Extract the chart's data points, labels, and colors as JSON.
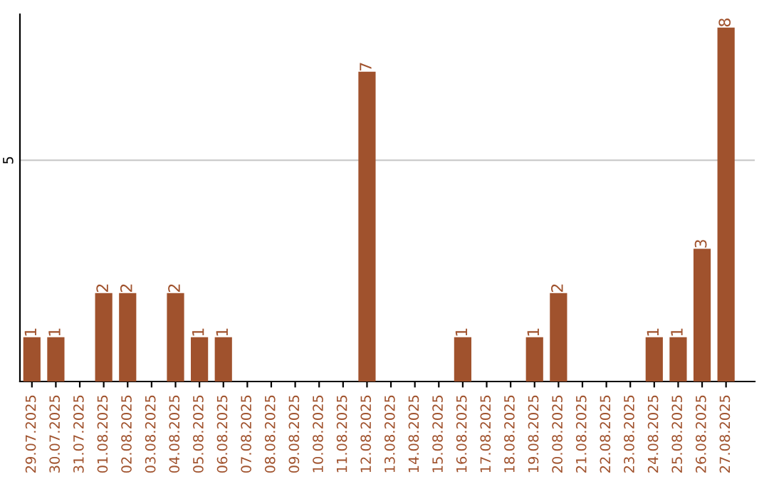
{
  "chart_data": {
    "type": "bar",
    "categories": [
      "29.07.2025",
      "30.07.2025",
      "31.07.2025",
      "01.08.2025",
      "02.08.2025",
      "03.08.2025",
      "04.08.2025",
      "05.08.2025",
      "06.08.2025",
      "07.08.2025",
      "08.08.2025",
      "09.08.2025",
      "10.08.2025",
      "11.08.2025",
      "12.08.2025",
      "13.08.2025",
      "14.08.2025",
      "15.08.2025",
      "16.08.2025",
      "17.08.2025",
      "18.08.2025",
      "19.08.2025",
      "20.08.2025",
      "21.08.2025",
      "22.08.2025",
      "23.08.2025",
      "24.08.2025",
      "25.08.2025",
      "26.08.2025",
      "27.08.2025"
    ],
    "values": [
      1,
      1,
      0,
      2,
      2,
      0,
      2,
      1,
      1,
      0,
      0,
      0,
      0,
      0,
      7,
      0,
      0,
      0,
      1,
      0,
      0,
      1,
      2,
      0,
      0,
      0,
      1,
      1,
      3,
      8
    ],
    "value_labels": [
      "1",
      "1",
      null,
      "2",
      "2",
      null,
      "2",
      "1",
      "1",
      null,
      null,
      null,
      null,
      null,
      "7",
      null,
      null,
      null,
      "1",
      null,
      null,
      "1",
      "2",
      null,
      null,
      null,
      "1",
      "1",
      "3",
      "8"
    ],
    "color": "#a0522d",
    "ylim": [
      0,
      8.3
    ],
    "yticks": [
      5
    ],
    "grid": "y"
  }
}
